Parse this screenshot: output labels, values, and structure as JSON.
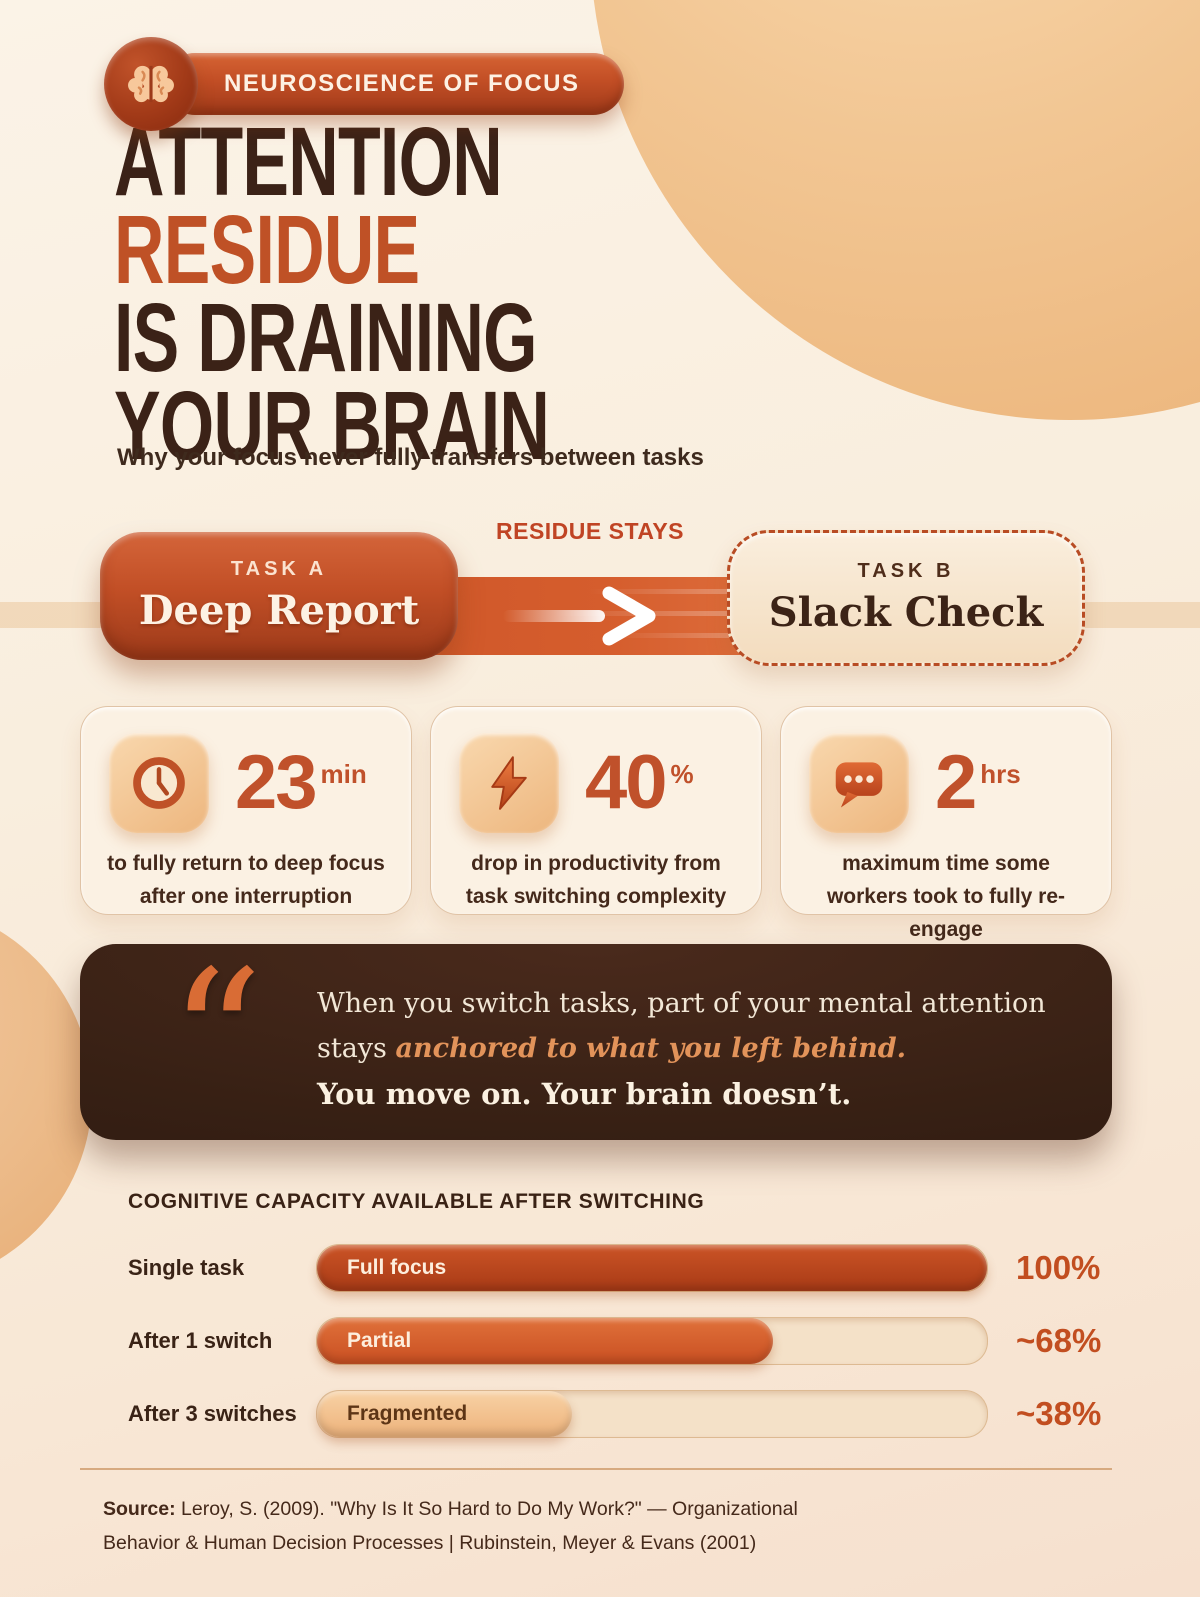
{
  "badge": {
    "label": "NEUROSCIENCE OF FOCUS"
  },
  "title": {
    "line1": "ATTENTION",
    "line2": "RESIDUE",
    "line3": "IS DRAINING",
    "line4": "YOUR BRAIN"
  },
  "subtitle": "Why your focus never fully transfers between tasks",
  "flow": {
    "residue_label": "RESIDUE STAYS",
    "task_a": {
      "kicker": "TASK A",
      "name": "Deep Report"
    },
    "task_b": {
      "kicker": "TASK B",
      "name": "Slack Check"
    }
  },
  "stats": [
    {
      "icon": "clock-icon",
      "value": "23",
      "unit": "min",
      "caption": "to fully return to deep focus after one interruption"
    },
    {
      "icon": "lightning-icon",
      "value": "40",
      "unit": "%",
      "caption": "drop in productivity from task switching complexity"
    },
    {
      "icon": "chat-bubble-icon",
      "value": "2",
      "unit": "hrs",
      "caption": "maximum time some workers took to fully re-engage"
    }
  ],
  "quote": {
    "line1": "When you switch tasks, part of your mental attention",
    "line2_prefix": "stays",
    "line2_emphasis": "anchored to what you left behind.",
    "line3": "You move on. Your brain doesn’t."
  },
  "chart_data": {
    "type": "bar",
    "orientation": "horizontal",
    "title": "COGNITIVE CAPACITY AVAILABLE AFTER SWITCHING",
    "categories": [
      "Single task",
      "After 1 switch",
      "After 3 switches"
    ],
    "values": [
      100,
      68,
      38
    ],
    "value_labels": [
      "100%",
      "~68%",
      "~38%"
    ],
    "bar_labels": [
      "Full focus",
      "Partial",
      "Fragmented"
    ],
    "xlim": [
      0,
      100
    ],
    "grid": false,
    "legend": false
  },
  "footer": {
    "source_label": "Source:",
    "source_text": "Leroy, S. (2009). \"Why Is It So Hard to Do My Work?\" — Organizational Behavior & Human Decision Processes  |  Rubinstein, Meyer & Evans (2001)"
  },
  "colors": {
    "accent_orange": "#C2542A",
    "deep_orange": "#A83C1B",
    "dark_brown": "#3B2217",
    "quote_bg": "#342014",
    "cream_bg": "#F9EFE2",
    "peach_circle": "#F0BE8C",
    "bar_full": "#B9441D",
    "bar_partial": "#D4622F",
    "bar_fragmented": "#F3C493",
    "bar_track": "#F4E1C8"
  }
}
